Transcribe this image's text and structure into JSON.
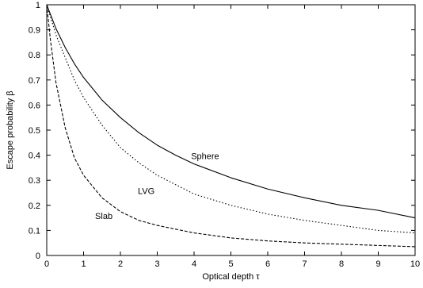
{
  "chart_data": {
    "type": "line",
    "title": "",
    "xlabel": "Optical depth τ",
    "ylabel": "Escape probability β",
    "xlim": [
      0,
      10
    ],
    "ylim": [
      0,
      1
    ],
    "xticks": [
      "0",
      "1",
      "2",
      "3",
      "4",
      "5",
      "6",
      "7",
      "8",
      "9",
      "10"
    ],
    "yticks": [
      "0",
      "0.1",
      "0.2",
      "0.3",
      "0.4",
      "0.5",
      "0.6",
      "0.7",
      "0.8",
      "0.9",
      "1"
    ],
    "grid": false,
    "legend": "none",
    "series": [
      {
        "name": "Sphere",
        "line_style": "solid",
        "x": [
          0,
          0.25,
          0.5,
          0.75,
          1,
          1.5,
          2,
          2.5,
          3,
          3.5,
          4,
          5,
          6,
          7,
          8,
          9,
          10
        ],
        "y": [
          1,
          0.905,
          0.83,
          0.765,
          0.71,
          0.62,
          0.55,
          0.49,
          0.44,
          0.4,
          0.365,
          0.31,
          0.265,
          0.23,
          0.2,
          0.18,
          0.15
        ]
      },
      {
        "name": "LVG",
        "line_style": "dotted",
        "x": [
          0,
          0.25,
          0.5,
          0.75,
          1,
          1.5,
          2,
          2.5,
          3,
          4,
          5,
          6,
          7,
          8,
          9,
          10
        ],
        "y": [
          1,
          0.88,
          0.79,
          0.7,
          0.63,
          0.52,
          0.43,
          0.37,
          0.32,
          0.245,
          0.2,
          0.165,
          0.14,
          0.12,
          0.1,
          0.09
        ]
      },
      {
        "name": "Slab",
        "line_style": "dashed",
        "x": [
          0,
          0.1,
          0.25,
          0.5,
          0.75,
          1,
          1.5,
          2,
          2.5,
          3,
          4,
          5,
          6,
          7,
          8,
          9,
          10
        ],
        "y": [
          1,
          0.86,
          0.69,
          0.51,
          0.39,
          0.32,
          0.23,
          0.175,
          0.14,
          0.12,
          0.09,
          0.07,
          0.058,
          0.05,
          0.045,
          0.04,
          0.035
        ]
      }
    ],
    "series_labels": [
      {
        "text": "Sphere",
        "x": 4.3,
        "y": 0.385
      },
      {
        "text": "LVG",
        "x": 2.7,
        "y": 0.245
      },
      {
        "text": "Slab",
        "x": 1.55,
        "y": 0.145
      }
    ]
  }
}
